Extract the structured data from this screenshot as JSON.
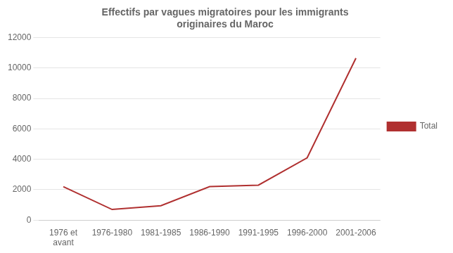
{
  "chart_data": {
    "type": "line",
    "title": "Effectifs par vagues migratoires pour les immigrants\noriginaires du Maroc",
    "categories": [
      "1976 et\navant",
      "1976-1980",
      "1981-1985",
      "1986-1990",
      "1991-1995",
      "1996-2000",
      "2001-2006"
    ],
    "series": [
      {
        "name": "Total",
        "color": "#b03030",
        "values": [
          2200,
          700,
          950,
          2200,
          2300,
          4100,
          10650
        ]
      }
    ],
    "ylim": [
      0,
      12000
    ],
    "yticks": [
      0,
      2000,
      4000,
      6000,
      8000,
      10000,
      12000
    ],
    "grid": true,
    "legend": "right"
  }
}
